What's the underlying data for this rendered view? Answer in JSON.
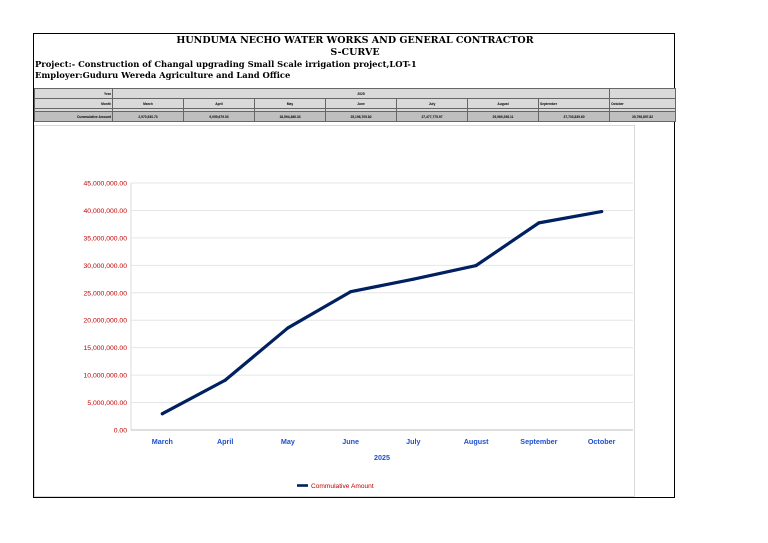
{
  "header": {
    "title": "HUNDUMA NECHO WATER WORKS AND GENERAL  CONTRACTOR",
    "subtitle": "S-CURVE",
    "project": "Project:- Construction of Changal upgrading Small Scale irrigation project,LOT-1",
    "employer": "Employer:Guduru Wereda Agriculture and Land Office"
  },
  "table": {
    "year_label": "Year",
    "year_value": "2025",
    "month_label": "Month",
    "amount_label": "Cummulative Amount",
    "months": [
      "March",
      "April",
      "May",
      "June",
      "July",
      "August",
      "September",
      "October"
    ],
    "amounts": [
      "2,970,530.73",
      "9,059,679.03",
      "18,594,486.33",
      "25,196,705.82",
      "27,477,775.97",
      "29,969,298.11",
      "37,733,839.60",
      "39,798,897.82"
    ]
  },
  "chart_data": {
    "type": "line",
    "categories": [
      "March",
      "April",
      "May",
      "June",
      "July",
      "August",
      "September",
      "October"
    ],
    "series": [
      {
        "name": "Commulative Amount",
        "values": [
          2970530.73,
          9059679.03,
          18594486.33,
          25196705.82,
          27477775.97,
          29969298.11,
          37733839.6,
          39798897.82
        ]
      }
    ],
    "title": "",
    "xlabel": "2025",
    "ylabel": "",
    "ylim": [
      0,
      45000000
    ],
    "y_ticks": [
      "0.00",
      "5,000,000.00",
      "10,000,000.00",
      "15,000,000.00",
      "20,000,000.00",
      "25,000,000.00",
      "30,000,000.00",
      "35,000,000.00",
      "40,000,000.00",
      "45,000,000.00"
    ],
    "legend_position": "bottom",
    "grid": true,
    "colors": {
      "line": "#002060",
      "y_tick": "#c00000",
      "x_tick": "#1f4fd1",
      "x_label": "#1f4fd1",
      "grid": "#e6e6e6"
    }
  }
}
